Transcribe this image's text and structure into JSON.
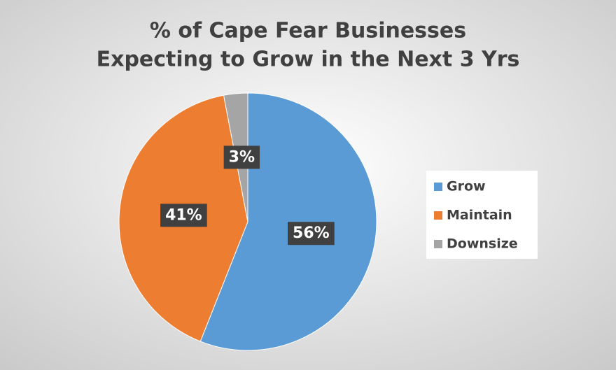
{
  "chart_data": {
    "type": "pie",
    "title": [
      "% of Cape Fear Businesses",
      "Expecting to Grow in the Next 3 Yrs"
    ],
    "categories": [
      "Grow",
      "Maintain",
      "Downsize"
    ],
    "values": [
      56,
      41,
      3
    ],
    "value_labels": [
      "56%",
      "41%",
      "3%"
    ],
    "colors": [
      "#5b9bd5",
      "#ed7d31",
      "#a5a5a5"
    ],
    "legend": "right"
  }
}
